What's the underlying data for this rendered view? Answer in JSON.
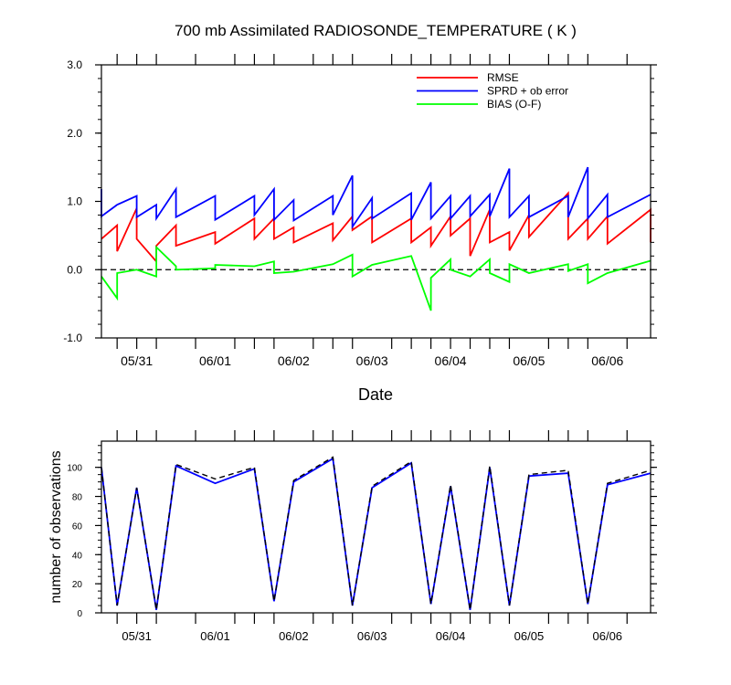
{
  "chart_data": [
    {
      "type": "line",
      "title": "700 mb Assimilated RADIOSONDE_TEMPERATURE ( K )",
      "xlabel": "Date",
      "ylabel": "",
      "xlim": [
        -0.2,
        6.8
      ],
      "ylim": [
        -1.0,
        3.0
      ],
      "y_ticks": [
        -1.0,
        0.0,
        1.0,
        2.0,
        3.0
      ],
      "y_tick_labels": [
        "-1.0",
        "0.0",
        "1.0",
        "2.0",
        "3.0"
      ],
      "x_ticks": [
        0.25,
        1.25,
        2.25,
        3.25,
        4.25,
        5.25,
        6.25
      ],
      "x_tick_labels": [
        "05/31",
        "06/01",
        "06/02",
        "06/03",
        "06/04",
        "06/05",
        "06/06"
      ],
      "x_minor_ticks": [
        0.0,
        0.25,
        0.5,
        1.0,
        1.5,
        1.75,
        2.0,
        2.5,
        2.75,
        3.0,
        3.5,
        3.75,
        4.0,
        4.25,
        4.5,
        4.75,
        5.0,
        5.5,
        5.75,
        6.0,
        6.5
      ],
      "zero_line": true,
      "legend": [
        "RMSE",
        "SPRD + ob error",
        "BIAS (O-F)"
      ],
      "legend_position": "top-right",
      "series": [
        {
          "name": "RMSE",
          "color": "#ff0000",
          "points": [
            [
              -0.2,
              0.45
            ],
            [
              0.0,
              0.65
            ],
            [
              0.0,
              0.27
            ],
            [
              0.25,
              0.9
            ],
            [
              0.25,
              0.45
            ],
            [
              0.5,
              0.12
            ],
            [
              0.5,
              0.35
            ],
            [
              0.75,
              0.65
            ],
            [
              0.75,
              0.35
            ],
            [
              1.25,
              0.55
            ],
            [
              1.25,
              0.38
            ],
            [
              1.75,
              0.75
            ],
            [
              1.75,
              0.45
            ],
            [
              2.0,
              0.75
            ],
            [
              2.0,
              0.45
            ],
            [
              2.25,
              0.62
            ],
            [
              2.25,
              0.4
            ],
            [
              2.75,
              0.68
            ],
            [
              2.75,
              0.43
            ],
            [
              3.0,
              0.78
            ],
            [
              3.0,
              0.58
            ],
            [
              3.25,
              0.78
            ],
            [
              3.25,
              0.4
            ],
            [
              3.75,
              0.75
            ],
            [
              3.75,
              0.4
            ],
            [
              4.0,
              0.62
            ],
            [
              4.0,
              0.35
            ],
            [
              4.25,
              0.78
            ],
            [
              4.25,
              0.5
            ],
            [
              4.5,
              0.75
            ],
            [
              4.5,
              0.2
            ],
            [
              4.75,
              0.88
            ],
            [
              4.75,
              0.4
            ],
            [
              5.0,
              0.55
            ],
            [
              5.0,
              0.28
            ],
            [
              5.25,
              0.8
            ],
            [
              5.25,
              0.48
            ],
            [
              5.75,
              1.12
            ],
            [
              5.75,
              0.45
            ],
            [
              6.0,
              0.75
            ],
            [
              6.0,
              0.45
            ],
            [
              6.25,
              0.78
            ],
            [
              6.25,
              0.38
            ],
            [
              6.8,
              0.88
            ],
            [
              6.8,
              0.4
            ]
          ]
        },
        {
          "name": "SPRD + ob error",
          "color": "#0000ff",
          "points": [
            [
              -0.2,
              1.18
            ],
            [
              -0.2,
              0.78
            ],
            [
              0.0,
              0.95
            ],
            [
              0.25,
              1.08
            ],
            [
              0.25,
              0.77
            ],
            [
              0.5,
              0.95
            ],
            [
              0.5,
              0.75
            ],
            [
              0.75,
              1.18
            ],
            [
              0.75,
              0.77
            ],
            [
              1.25,
              1.08
            ],
            [
              1.25,
              0.73
            ],
            [
              1.75,
              1.08
            ],
            [
              1.75,
              0.8
            ],
            [
              2.0,
              1.18
            ],
            [
              2.0,
              0.73
            ],
            [
              2.25,
              1.02
            ],
            [
              2.25,
              0.72
            ],
            [
              2.75,
              1.08
            ],
            [
              2.75,
              0.8
            ],
            [
              3.0,
              1.38
            ],
            [
              3.0,
              0.63
            ],
            [
              3.25,
              1.05
            ],
            [
              3.25,
              0.75
            ],
            [
              3.75,
              1.12
            ],
            [
              3.75,
              0.73
            ],
            [
              4.0,
              1.28
            ],
            [
              4.0,
              0.75
            ],
            [
              4.25,
              1.08
            ],
            [
              4.25,
              0.75
            ],
            [
              4.5,
              1.08
            ],
            [
              4.5,
              0.78
            ],
            [
              4.75,
              1.1
            ],
            [
              4.75,
              0.78
            ],
            [
              5.0,
              1.48
            ],
            [
              5.0,
              0.77
            ],
            [
              5.25,
              1.08
            ],
            [
              5.25,
              0.77
            ],
            [
              5.75,
              1.08
            ],
            [
              5.75,
              0.77
            ],
            [
              6.0,
              1.5
            ],
            [
              6.0,
              0.75
            ],
            [
              6.25,
              1.1
            ],
            [
              6.25,
              0.77
            ],
            [
              6.8,
              1.1
            ]
          ]
        },
        {
          "name": "BIAS (O-F)",
          "color": "#00ff00",
          "points": [
            [
              -0.2,
              -0.1
            ],
            [
              0.0,
              -0.42
            ],
            [
              0.0,
              -0.05
            ],
            [
              0.25,
              0.0
            ],
            [
              0.5,
              -0.1
            ],
            [
              0.5,
              0.33
            ],
            [
              0.75,
              0.05
            ],
            [
              0.75,
              0.0
            ],
            [
              1.25,
              0.02
            ],
            [
              1.25,
              0.07
            ],
            [
              1.75,
              0.05
            ],
            [
              2.0,
              0.12
            ],
            [
              2.0,
              -0.05
            ],
            [
              2.25,
              -0.03
            ],
            [
              2.75,
              0.08
            ],
            [
              3.0,
              0.22
            ],
            [
              3.0,
              -0.1
            ],
            [
              3.25,
              0.07
            ],
            [
              3.75,
              0.2
            ],
            [
              4.0,
              -0.6
            ],
            [
              4.0,
              -0.12
            ],
            [
              4.25,
              0.15
            ],
            [
              4.25,
              0.0
            ],
            [
              4.5,
              -0.1
            ],
            [
              4.75,
              0.15
            ],
            [
              4.75,
              -0.05
            ],
            [
              5.0,
              -0.18
            ],
            [
              5.0,
              0.08
            ],
            [
              5.25,
              -0.05
            ],
            [
              5.75,
              0.08
            ],
            [
              5.75,
              -0.02
            ],
            [
              6.0,
              0.08
            ],
            [
              6.0,
              -0.2
            ],
            [
              6.25,
              -0.05
            ],
            [
              6.8,
              0.13
            ]
          ]
        }
      ]
    },
    {
      "type": "line",
      "title": "",
      "xlabel": "",
      "ylabel": "number of observations",
      "xlim": [
        -0.2,
        6.8
      ],
      "ylim": [
        0,
        118
      ],
      "y_ticks": [
        0,
        20,
        40,
        60,
        80,
        100
      ],
      "y_tick_labels": [
        "0",
        "20",
        "40",
        "60",
        "80",
        "100"
      ],
      "x_ticks": [
        0.25,
        1.25,
        2.25,
        3.25,
        4.25,
        5.25,
        6.25
      ],
      "x_tick_labels": [
        "05/31",
        "06/01",
        "06/02",
        "06/03",
        "06/04",
        "06/05",
        "06/06"
      ],
      "x_minor_ticks": [
        0.0,
        0.25,
        0.5,
        1.0,
        1.5,
        1.75,
        2.0,
        2.5,
        2.75,
        3.0,
        3.5,
        3.75,
        4.0,
        4.25,
        4.5,
        4.75,
        5.0,
        5.5,
        5.75,
        6.0,
        6.5
      ],
      "series": [
        {
          "name": "number of observations",
          "color": "#0000ff",
          "dash": false,
          "points": [
            [
              -0.2,
              100
            ],
            [
              0.0,
              5
            ],
            [
              0.25,
              86
            ],
            [
              0.5,
              2
            ],
            [
              0.75,
              101
            ],
            [
              1.25,
              89
            ],
            [
              1.75,
              99
            ],
            [
              2.0,
              8
            ],
            [
              2.25,
              90
            ],
            [
              2.75,
              106
            ],
            [
              3.0,
              5
            ],
            [
              3.25,
              86
            ],
            [
              3.75,
              103
            ],
            [
              4.0,
              6
            ],
            [
              4.25,
              87
            ],
            [
              4.5,
              2
            ],
            [
              4.75,
              100
            ],
            [
              5.0,
              5
            ],
            [
              5.25,
              94
            ],
            [
              5.75,
              96
            ],
            [
              6.0,
              6
            ],
            [
              6.25,
              88
            ],
            [
              6.8,
              96
            ]
          ]
        },
        {
          "name": "number of observations (dashed)",
          "color": "#000000",
          "dash": true,
          "points": [
            [
              -0.2,
              100
            ],
            [
              0.0,
              5
            ],
            [
              0.25,
              86
            ],
            [
              0.5,
              2
            ],
            [
              0.75,
              102
            ],
            [
              1.25,
              92
            ],
            [
              1.75,
              100
            ],
            [
              2.0,
              8
            ],
            [
              2.25,
              91
            ],
            [
              2.75,
              107
            ],
            [
              3.0,
              5
            ],
            [
              3.25,
              87
            ],
            [
              3.75,
              104
            ],
            [
              4.0,
              6
            ],
            [
              4.25,
              88
            ],
            [
              4.5,
              2
            ],
            [
              4.75,
              101
            ],
            [
              5.0,
              5
            ],
            [
              5.25,
              95
            ],
            [
              5.75,
              98
            ],
            [
              6.0,
              6
            ],
            [
              6.25,
              89
            ],
            [
              6.8,
              98
            ]
          ]
        }
      ]
    }
  ]
}
